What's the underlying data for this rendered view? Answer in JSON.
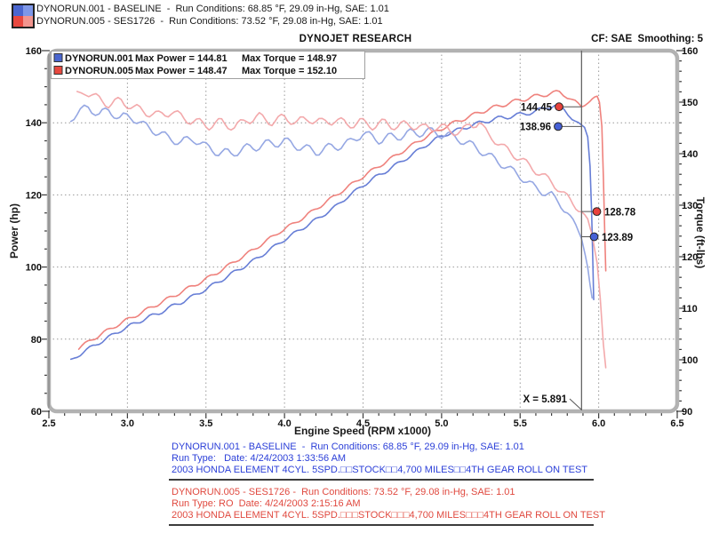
{
  "header": {
    "runs": [
      {
        "label": "DYNORUN.001 - BASELINE  -  Run Conditions: 68.85 °F, 29.09 in-Hg, SAE: 1.01"
      },
      {
        "label": "DYNORUN.005 - SES1726  -  Run Conditions: 73.52 °F, 29.08 in-Hg, SAE: 1.01"
      }
    ],
    "legend_icon_colors": [
      "#4a66cf",
      "#7e97e8",
      "#e8483f",
      "#f2958f"
    ]
  },
  "toolbar": {
    "title": "DYNOJET RESEARCH",
    "cf_smoothing": "CF: SAE  Smoothing: 5"
  },
  "chart_data": {
    "type": "line",
    "title": "DYNOJET RESEARCH",
    "x_axis": {
      "label": "Engine Speed (RPM x1000)",
      "min": 2.5,
      "max": 6.5,
      "minor_step": 0.1,
      "tick_values": [
        2.5,
        3.0,
        3.5,
        4.0,
        4.5,
        5.0,
        5.5,
        6.0,
        6.5
      ],
      "tick_labels": [
        "2.5",
        "3.0",
        "3.5",
        "4.0",
        "4.5",
        "5.0",
        "5.5",
        "6.0",
        "6.5"
      ],
      "grid_values": [
        3.0,
        3.5,
        4.0,
        4.5,
        5.0,
        5.5,
        6.0
      ]
    },
    "y_left": {
      "label": "Power (hp)",
      "min": 60,
      "max": 160,
      "minor_step": 5,
      "tick_values": [
        160,
        140,
        120,
        100,
        80,
        60
      ],
      "tick_labels": [
        "160",
        "140",
        "120",
        "100",
        "80",
        "60"
      ],
      "grid_values": [
        80,
        100,
        120,
        140
      ]
    },
    "y_right": {
      "label": "Torque (ft-lbs)",
      "min": 90,
      "max": 160,
      "minor_step": 2,
      "tick_values": [
        160,
        150,
        140,
        130,
        120,
        110,
        100,
        90
      ],
      "tick_labels": [
        "160",
        "150",
        "140",
        "130",
        "120",
        "110",
        "100",
        "90"
      ]
    },
    "legend": [
      {
        "name": "DYNORUN.001",
        "max_power": "Max Power = 144.81",
        "max_torque": "Max Torque = 148.97",
        "color": "#4a66cf"
      },
      {
        "name": "DYNORUN.005",
        "max_power": "Max Power = 148.47",
        "max_torque": "Max Torque = 152.10",
        "color": "#e8483f"
      }
    ],
    "cursor": {
      "x": 5.891,
      "label": "X = 5.891",
      "readouts": [
        {
          "series": "power-dynorun005",
          "value": "144.45",
          "color": "#e8413c"
        },
        {
          "series": "power-dynorun001",
          "value": "138.96",
          "color": "#4660d6"
        },
        {
          "series": "torque-dynorun005",
          "value": "128.78",
          "color": "#e8413c"
        },
        {
          "series": "torque-dynorun001",
          "value": "123.89",
          "color": "#4660d6"
        }
      ]
    },
    "series": [
      {
        "name": "power-dynorun001",
        "axis": "left",
        "color": "#5f77d4",
        "points": [
          [
            2.64,
            74
          ],
          [
            2.72,
            76.5
          ],
          [
            2.8,
            78.5
          ],
          [
            2.88,
            80.5
          ],
          [
            2.96,
            82.5
          ],
          [
            3.04,
            84.2
          ],
          [
            3.12,
            85.8
          ],
          [
            3.2,
            87.2
          ],
          [
            3.28,
            89
          ],
          [
            3.36,
            90.6
          ],
          [
            3.44,
            92.4
          ],
          [
            3.52,
            94.4
          ],
          [
            3.6,
            96.4
          ],
          [
            3.68,
            98.6
          ],
          [
            3.76,
            100.6
          ],
          [
            3.84,
            102.8
          ],
          [
            3.92,
            105.2
          ],
          [
            4.0,
            107.6
          ],
          [
            4.08,
            109.8
          ],
          [
            4.16,
            112
          ],
          [
            4.24,
            114.2
          ],
          [
            4.32,
            116.6
          ],
          [
            4.4,
            119.4
          ],
          [
            4.48,
            122
          ],
          [
            4.56,
            124.4
          ],
          [
            4.64,
            126.4
          ],
          [
            4.72,
            128.6
          ],
          [
            4.8,
            130.8
          ],
          [
            4.88,
            133.2
          ],
          [
            4.96,
            135.4
          ],
          [
            5.04,
            137
          ],
          [
            5.12,
            138.2
          ],
          [
            5.2,
            139.4
          ],
          [
            5.28,
            140.4
          ],
          [
            5.36,
            141.2
          ],
          [
            5.44,
            141.8
          ],
          [
            5.52,
            142.4
          ],
          [
            5.6,
            143.2
          ],
          [
            5.68,
            144.4
          ],
          [
            5.72,
            144.81
          ],
          [
            5.78,
            143.6
          ],
          [
            5.83,
            141.2
          ],
          [
            5.891,
            138.96
          ],
          [
            5.91,
            138.6
          ],
          [
            5.93,
            136.2
          ],
          [
            5.945,
            128
          ],
          [
            5.955,
            115
          ],
          [
            5.962,
            103
          ],
          [
            5.968,
            91
          ]
        ]
      },
      {
        "name": "power-dynorun005",
        "axis": "left",
        "color": "#ee7b76",
        "points": [
          [
            2.69,
            77.5
          ],
          [
            2.77,
            79.8
          ],
          [
            2.85,
            81.8
          ],
          [
            2.93,
            83.8
          ],
          [
            3.01,
            85.6
          ],
          [
            3.09,
            87.4
          ],
          [
            3.17,
            89.2
          ],
          [
            3.25,
            91
          ],
          [
            3.33,
            92.8
          ],
          [
            3.41,
            94.6
          ],
          [
            3.49,
            96.4
          ],
          [
            3.57,
            98.4
          ],
          [
            3.65,
            100.6
          ],
          [
            3.73,
            102.8
          ],
          [
            3.81,
            105
          ],
          [
            3.89,
            107.4
          ],
          [
            3.97,
            109.8
          ],
          [
            4.05,
            111.8
          ],
          [
            4.13,
            114
          ],
          [
            4.21,
            116.4
          ],
          [
            4.29,
            118.8
          ],
          [
            4.37,
            121.2
          ],
          [
            4.45,
            123.6
          ],
          [
            4.53,
            126
          ],
          [
            4.61,
            128.2
          ],
          [
            4.69,
            130.4
          ],
          [
            4.77,
            132.6
          ],
          [
            4.85,
            134.8
          ],
          [
            4.93,
            136.8
          ],
          [
            5.01,
            138.6
          ],
          [
            5.09,
            140.2
          ],
          [
            5.17,
            141.6
          ],
          [
            5.25,
            143
          ],
          [
            5.33,
            144.2
          ],
          [
            5.41,
            145.2
          ],
          [
            5.49,
            146.2
          ],
          [
            5.57,
            147
          ],
          [
            5.65,
            147.8
          ],
          [
            5.75,
            148.47
          ],
          [
            5.8,
            147.2
          ],
          [
            5.85,
            145.8
          ],
          [
            5.891,
            144.45
          ],
          [
            5.93,
            145.8
          ],
          [
            5.96,
            146.5
          ],
          [
            5.99,
            146.8
          ],
          [
            6.005,
            145.5
          ],
          [
            6.02,
            139
          ],
          [
            6.03,
            125
          ],
          [
            6.04,
            107
          ],
          [
            6.045,
            99
          ]
        ]
      },
      {
        "name": "torque-dynorun001",
        "axis": "right",
        "color": "#8fa2e2",
        "points": [
          [
            2.64,
            146.8
          ],
          [
            2.7,
            148.3
          ],
          [
            2.75,
            148.97
          ],
          [
            2.82,
            147.6
          ],
          [
            2.88,
            148.4
          ],
          [
            2.95,
            146.9
          ],
          [
            3.02,
            147.2
          ],
          [
            3.1,
            145.6
          ],
          [
            3.18,
            144.3
          ],
          [
            3.26,
            143.1
          ],
          [
            3.34,
            142.2
          ],
          [
            3.42,
            142.9
          ],
          [
            3.5,
            141.4
          ],
          [
            3.58,
            140.2
          ],
          [
            3.66,
            140
          ],
          [
            3.74,
            140.9
          ],
          [
            3.82,
            141.4
          ],
          [
            3.9,
            141.9
          ],
          [
            4.0,
            142.4
          ],
          [
            4.1,
            141.3
          ],
          [
            4.2,
            140.4
          ],
          [
            4.3,
            141.3
          ],
          [
            4.4,
            141.9
          ],
          [
            4.5,
            143.9
          ],
          [
            4.6,
            142.7
          ],
          [
            4.7,
            143.3
          ],
          [
            4.8,
            143.9
          ],
          [
            4.9,
            144.3
          ],
          [
            5.0,
            143.9
          ],
          [
            5.1,
            143
          ],
          [
            5.2,
            141.5
          ],
          [
            5.3,
            139.6
          ],
          [
            5.4,
            137.7
          ],
          [
            5.5,
            135.6
          ],
          [
            5.6,
            133.3
          ],
          [
            5.7,
            131.9
          ],
          [
            5.8,
            128.7
          ],
          [
            5.891,
            123.89
          ],
          [
            5.915,
            120.5
          ],
          [
            5.93,
            118
          ],
          [
            5.945,
            114.5
          ],
          [
            5.958,
            111.8
          ]
        ]
      },
      {
        "name": "torque-dynorun005",
        "axis": "right",
        "color": "#f2a4a6",
        "points": [
          [
            2.68,
            151.3
          ],
          [
            2.73,
            152.1
          ],
          [
            2.8,
            150.9
          ],
          [
            2.88,
            149.6
          ],
          [
            2.96,
            150.2
          ],
          [
            3.04,
            148.9
          ],
          [
            3.12,
            148.1
          ],
          [
            3.2,
            147.4
          ],
          [
            3.28,
            148.2
          ],
          [
            3.36,
            146.9
          ],
          [
            3.44,
            146.1
          ],
          [
            3.52,
            145.5
          ],
          [
            3.6,
            146.1
          ],
          [
            3.68,
            145.1
          ],
          [
            3.76,
            146.6
          ],
          [
            3.84,
            147.1
          ],
          [
            3.92,
            146.2
          ],
          [
            4.0,
            147
          ],
          [
            4.08,
            146.1
          ],
          [
            4.16,
            146.8
          ],
          [
            4.24,
            146
          ],
          [
            4.32,
            146.6
          ],
          [
            4.4,
            145.7
          ],
          [
            4.48,
            146.1
          ],
          [
            4.56,
            145.5
          ],
          [
            4.64,
            145.9
          ],
          [
            4.72,
            145.3
          ],
          [
            4.8,
            145.7
          ],
          [
            4.88,
            144.9
          ],
          [
            4.96,
            145.3
          ],
          [
            5.04,
            144.7
          ],
          [
            5.12,
            144.1
          ],
          [
            5.18,
            145.7
          ],
          [
            5.24,
            146.1
          ],
          [
            5.3,
            143.6
          ],
          [
            5.4,
            141.1
          ],
          [
            5.5,
            139
          ],
          [
            5.6,
            136.7
          ],
          [
            5.7,
            134.5
          ],
          [
            5.8,
            131.5
          ],
          [
            5.891,
            128.78
          ],
          [
            5.93,
            126.8
          ],
          [
            5.96,
            124
          ],
          [
            5.99,
            119
          ],
          [
            6.01,
            112
          ],
          [
            6.03,
            103
          ],
          [
            6.045,
            98.3
          ]
        ]
      }
    ]
  },
  "footer": {
    "runs": [
      {
        "color": "#2b3fd8",
        "lines": [
          "DYNORUN.001 - BASELINE  -  Run Conditions: 68.85 °F, 29.09 in-Hg, SAE: 1.01",
          "Run Type:   Date: 4/24/2003 1:33:56 AM",
          "2003 HONDA ELEMENT 4CYL. 5SPD.□□STOCK□□4,700 MILES□□4TH GEAR ROLL ON TEST"
        ]
      },
      {
        "color": "#e0493f",
        "lines": [
          "DYNORUN.005 - SES1726 -  Run Conditions: 73.52 °F, 29.08 in-Hg, SAE: 1.01",
          "Run Type: RO  Date: 4/24/2003 2:15:16 AM",
          "2003 HONDA ELEMENT 4CYL. 5SPD.□□□STOCK□□□4,700 MILES□□□4TH GEAR ROLL ON TEST"
        ]
      }
    ]
  }
}
